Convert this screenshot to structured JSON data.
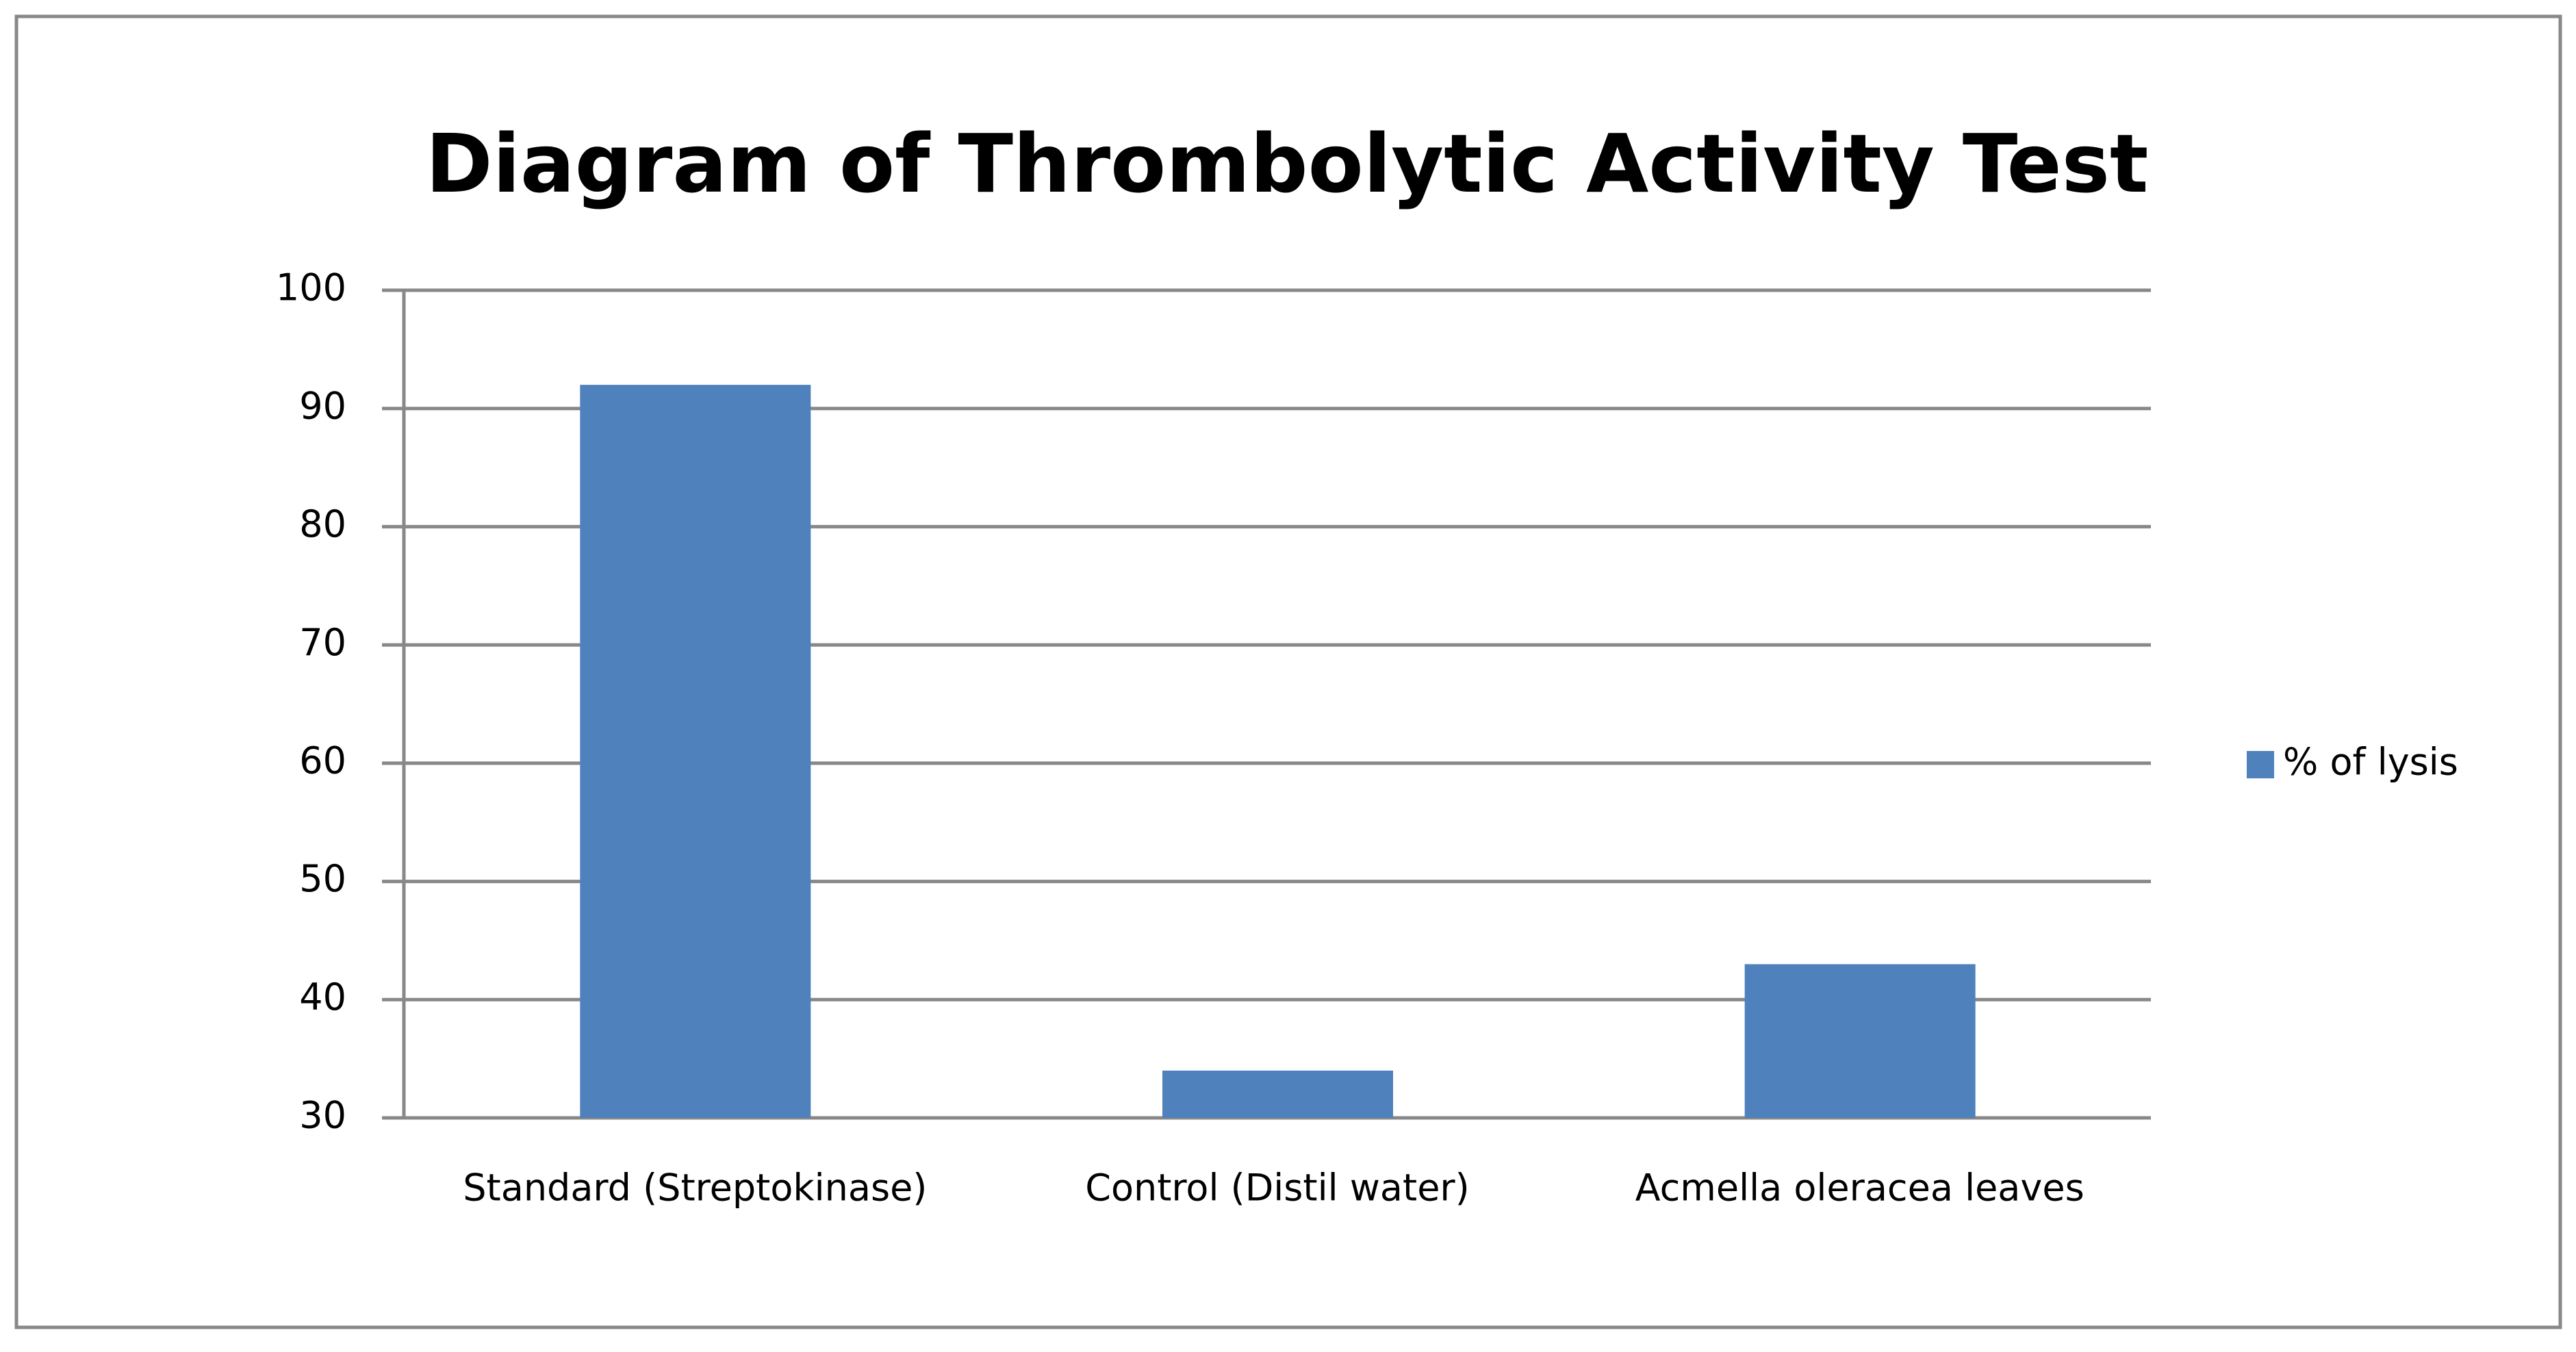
{
  "chart_data": {
    "type": "bar",
    "title": "Diagram of Thrombolytic Activity Test",
    "categories": [
      "Standard (Streptokinase)",
      "Control (Distil water)",
      "Acmella oleracea leaves"
    ],
    "series": [
      {
        "name": "% of lysis",
        "color": "#4f81bd",
        "values": [
          92,
          34,
          43
        ]
      }
    ],
    "ylim": [
      30,
      100
    ],
    "yticks": [
      30,
      40,
      50,
      60,
      70,
      80,
      90,
      100
    ],
    "grid": true,
    "legend": "right"
  }
}
